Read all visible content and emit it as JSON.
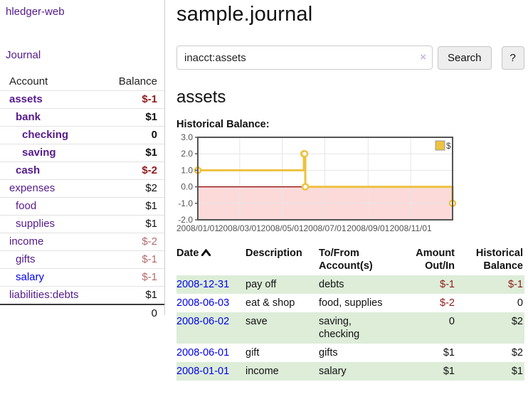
{
  "app": {
    "brand": "hledger-web",
    "nav_journal": "Journal"
  },
  "sidebar": {
    "accounts_header": {
      "account": "Account",
      "balance": "Balance"
    },
    "accounts": [
      {
        "name": "assets",
        "balance": "$-1",
        "indent": 1,
        "bold": true,
        "neg": "strong"
      },
      {
        "name": "bank",
        "balance": "$1",
        "indent": 2,
        "bold": true,
        "neg": "none"
      },
      {
        "name": "checking",
        "balance": "0",
        "indent": 3,
        "bold": true,
        "neg": "none"
      },
      {
        "name": "saving",
        "balance": "$1",
        "indent": 3,
        "bold": true,
        "neg": "none"
      },
      {
        "name": "cash",
        "balance": "$-2",
        "indent": 2,
        "bold": true,
        "neg": "strong"
      },
      {
        "name": "expenses",
        "balance": "$2",
        "indent": 1,
        "bold": false,
        "neg": "none"
      },
      {
        "name": "food",
        "balance": "$1",
        "indent": 2,
        "bold": false,
        "neg": "none"
      },
      {
        "name": "supplies",
        "balance": "$1",
        "indent": 2,
        "bold": false,
        "neg": "none"
      },
      {
        "name": "income",
        "balance": "$-2",
        "indent": 1,
        "bold": false,
        "neg": "muted"
      },
      {
        "name": "gifts",
        "balance": "$-1",
        "indent": 2,
        "bold": false,
        "neg": "muted"
      },
      {
        "name": "salary",
        "balance": "$-1",
        "indent": 2,
        "bold": false,
        "neg": "muted",
        "link_style": "blue"
      },
      {
        "name": "liabilities:debts",
        "balance": "$1",
        "indent": 1,
        "bold": false,
        "neg": "none"
      }
    ],
    "total": "0"
  },
  "header": {
    "title": "sample.journal"
  },
  "search": {
    "value": "inacct:assets",
    "clear_icon": "×",
    "button_label": "Search",
    "help_label": "?"
  },
  "account_page": {
    "heading": "assets",
    "chart_label": "Historical Balance:"
  },
  "chart_data": {
    "type": "line",
    "title": "Historical Balance",
    "step": true,
    "series": [
      {
        "name": "$",
        "color": "#EDC240",
        "points": [
          {
            "x": "2008-01-01",
            "y": 1.0
          },
          {
            "x": "2008-06-01",
            "y": 2.0
          },
          {
            "x": "2008-06-02",
            "y": 2.0
          },
          {
            "x": "2008-06-03",
            "y": 0.0
          },
          {
            "x": "2008-12-31",
            "y": -1.0
          }
        ]
      }
    ],
    "x_range": [
      "2008-01-01",
      "2008-12-31"
    ],
    "ylim": [
      -2.0,
      3.0
    ],
    "yticks": [
      "3.0",
      "2.0",
      "1.0",
      "0.0",
      "-1.0",
      "-2.0"
    ],
    "ytick_values": [
      3.0,
      2.0,
      1.0,
      0.0,
      -1.0,
      -2.0
    ],
    "xticks": [
      "2008/01/01",
      "2008/03/01",
      "2008/05/01",
      "2008/07/01",
      "2008/09/01",
      "2008/11/01"
    ],
    "xtick_dates": [
      "2008-01-01",
      "2008-03-01",
      "2008-05-01",
      "2008-07-01",
      "2008-09-01",
      "2008-11-01"
    ],
    "grid": true,
    "legend_position": "top-right",
    "legend_label": "$",
    "colors": {
      "line": "#EDC240",
      "marker_fill": "#ffffff",
      "negative_region": "#fcdada",
      "zero_line": "#8b0000",
      "gridline": "#e6e6e6",
      "plot_border": "#545454",
      "axis_text": "#545454"
    }
  },
  "register": {
    "columns": [
      {
        "label": "Date",
        "align": "left",
        "sorted": "asc"
      },
      {
        "label": "Description",
        "align": "left"
      },
      {
        "label": "To/From\nAccount(s)",
        "align": "left"
      },
      {
        "label": "Amount\nOut/In",
        "align": "right"
      },
      {
        "label": "Historical\nBalance",
        "align": "right"
      }
    ],
    "rows": [
      {
        "date": "2008-12-31",
        "description": "pay off",
        "accounts": "debts",
        "amount": "$-1",
        "amount_negative": true,
        "balance": "$-1",
        "balance_negative": true
      },
      {
        "date": "2008-06-03",
        "description": "eat & shop",
        "accounts": "food, supplies",
        "amount": "$-2",
        "amount_negative": true,
        "balance": "0",
        "balance_negative": false
      },
      {
        "date": "2008-06-02",
        "description": "save",
        "accounts": "saving,\nchecking",
        "amount": "0",
        "amount_negative": false,
        "balance": "$2",
        "balance_negative": false
      },
      {
        "date": "2008-06-01",
        "description": "gift",
        "accounts": "gifts",
        "amount": "$1",
        "amount_negative": false,
        "balance": "$2",
        "balance_negative": false
      },
      {
        "date": "2008-01-01",
        "description": "income",
        "accounts": "salary",
        "amount": "$1",
        "amount_negative": false,
        "balance": "$1",
        "balance_negative": false
      }
    ]
  }
}
